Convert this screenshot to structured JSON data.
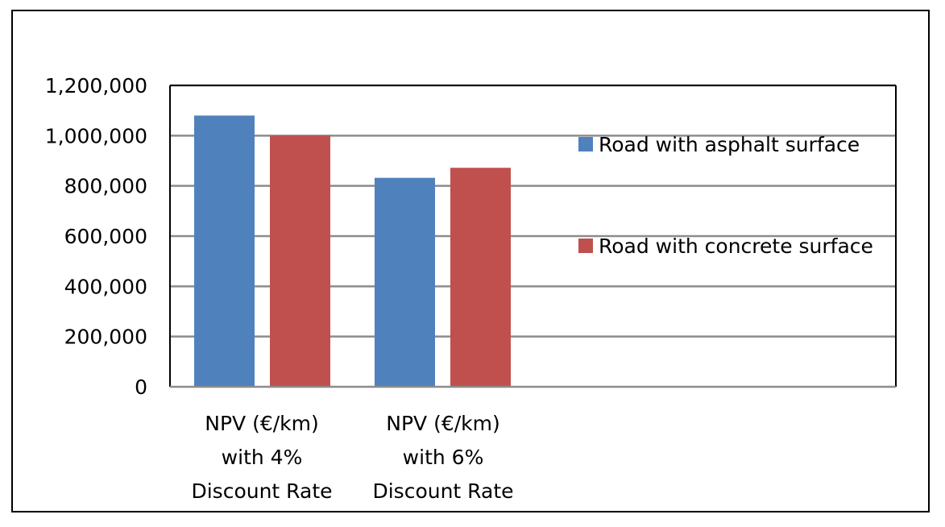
{
  "chart_data": {
    "type": "bar",
    "categories": [
      [
        "NPV (€/km)",
        "with 4%",
        "Discount Rate"
      ],
      [
        "NPV (€/km)",
        "with 6%",
        "Discount Rate"
      ]
    ],
    "series": [
      {
        "name": "Road with asphalt surface",
        "values": [
          1080000,
          832000
        ],
        "color": "#4F81BD"
      },
      {
        "name": "Road with concrete surface",
        "values": [
          1000000,
          872000
        ],
        "color": "#C0504D"
      }
    ],
    "yticks": [
      "0",
      "200,000",
      "400,000",
      "600,000",
      "800,000",
      "1,000,000",
      "1,200,000"
    ],
    "ylim": [
      0,
      1200000
    ],
    "grid": true,
    "legend_position": "right"
  }
}
